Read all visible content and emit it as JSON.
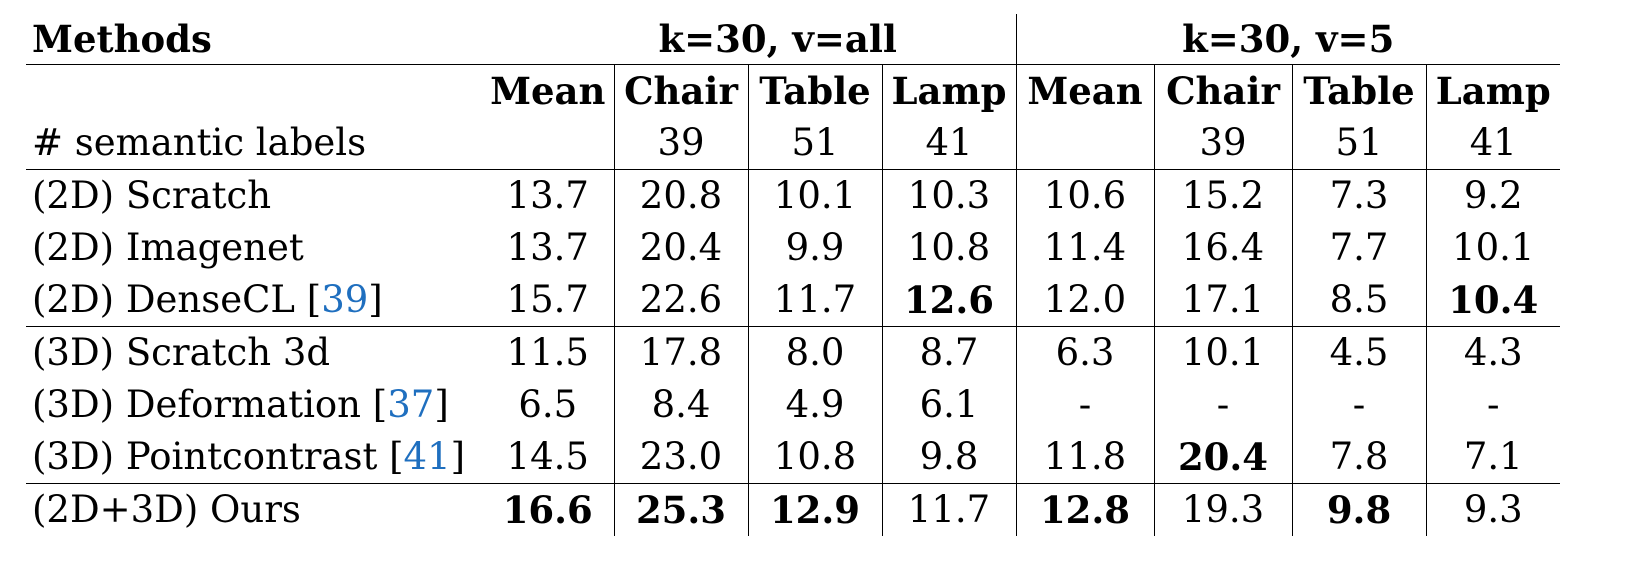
{
  "header": {
    "methods_label": "Methods",
    "group1": "k=30, v=all",
    "group2": "k=30, v=5",
    "columns": [
      "Mean",
      "Chair",
      "Table",
      "Lamp",
      "Mean",
      "Chair",
      "Table",
      "Lamp"
    ],
    "labels_row_title": "# semantic labels",
    "labels_row": [
      "",
      "39",
      "51",
      "41",
      "",
      "39",
      "51",
      "41"
    ]
  },
  "rows": [
    {
      "prefix": "(2D) Scratch",
      "cite": "",
      "values": [
        "13.7",
        "20.8",
        "10.1",
        "10.3",
        "10.6",
        "15.2",
        "7.3",
        "9.2"
      ],
      "bold": []
    },
    {
      "prefix": "(2D) Imagenet",
      "cite": "",
      "values": [
        "13.7",
        "20.4",
        "9.9",
        "10.8",
        "11.4",
        "16.4",
        "7.7",
        "10.1"
      ],
      "bold": []
    },
    {
      "prefix": "(2D) DenseCL",
      "cite": "39",
      "values": [
        "15.7",
        "22.6",
        "11.7",
        "12.6",
        "12.0",
        "17.1",
        "8.5",
        "10.4"
      ],
      "bold": [
        3,
        7
      ]
    },
    {
      "prefix": "(3D) Scratch 3d",
      "cite": "",
      "values": [
        "11.5",
        "17.8",
        "8.0",
        "8.7",
        "6.3",
        "10.1",
        "4.5",
        "4.3"
      ],
      "bold": []
    },
    {
      "prefix": "(3D) Deformation",
      "cite": "37",
      "values": [
        "6.5",
        "8.4",
        "4.9",
        "6.1",
        "-",
        "-",
        "-",
        "-"
      ],
      "bold": []
    },
    {
      "prefix": "(3D) Pointcontrast",
      "cite": "41",
      "values": [
        "14.5",
        "23.0",
        "10.8",
        "9.8",
        "11.8",
        "20.4",
        "7.8",
        "7.1"
      ],
      "bold": [
        5
      ]
    },
    {
      "prefix": "(2D+3D) Ours",
      "cite": "",
      "values": [
        "16.6",
        "25.3",
        "12.9",
        "11.7",
        "12.8",
        "19.3",
        "9.8",
        "9.3"
      ],
      "bold": [
        0,
        1,
        2,
        4,
        6
      ]
    }
  ]
}
